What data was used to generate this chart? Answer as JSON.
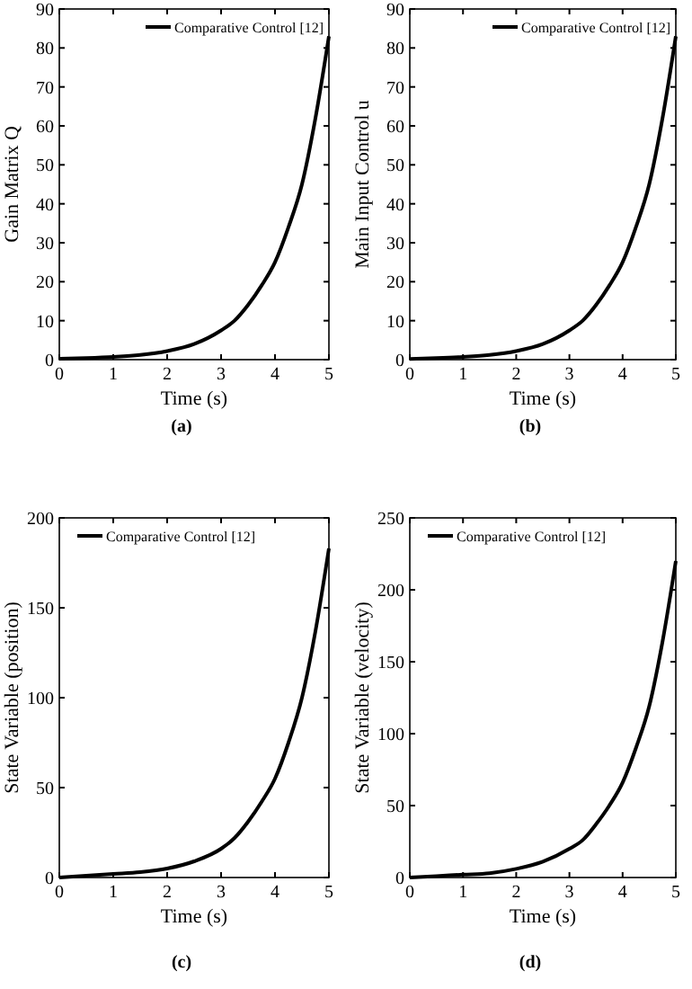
{
  "chart_data": [
    {
      "type": "line",
      "xlabel": "Time (s)",
      "ylabel": "Gain Matrix Q",
      "annotations": [
        "(a)"
      ],
      "xlim": [
        0,
        5
      ],
      "ylim": [
        0,
        90
      ],
      "xticks": [
        0,
        1,
        2,
        3,
        4,
        5
      ],
      "yticks": [
        0,
        10,
        20,
        30,
        40,
        50,
        60,
        70,
        80,
        90
      ],
      "grid": false,
      "legend": "top right",
      "x": [
        0,
        0.5,
        1,
        1.5,
        2,
        2.5,
        3,
        3.25,
        3.5,
        3.75,
        4,
        4.25,
        4.5,
        4.75,
        5
      ],
      "series": [
        {
          "name": "Comparative Control [12]",
          "color": "#000000",
          "values": [
            0.2,
            0.4,
            0.7,
            1.2,
            2.2,
            4,
            7.5,
            10,
            14,
            19,
            25,
            34,
            45,
            62,
            83
          ]
        }
      ]
    },
    {
      "type": "line",
      "xlabel": "Time (s)",
      "ylabel": "Main Input Control u",
      "annotations": [
        "(b)"
      ],
      "xlim": [
        0,
        5
      ],
      "ylim": [
        0,
        90
      ],
      "xticks": [
        0,
        1,
        2,
        3,
        4,
        5
      ],
      "yticks": [
        0,
        10,
        20,
        30,
        40,
        50,
        60,
        70,
        80,
        90
      ],
      "grid": false,
      "legend": "top right",
      "x": [
        0,
        0.5,
        1,
        1.5,
        2,
        2.5,
        3,
        3.25,
        3.5,
        3.75,
        4,
        4.25,
        4.5,
        4.75,
        5
      ],
      "series": [
        {
          "name": "Comparative Control [12]",
          "color": "#000000",
          "values": [
            0.2,
            0.4,
            0.7,
            1.2,
            2.2,
            4,
            7.5,
            10,
            14,
            19,
            25,
            34,
            45,
            62,
            83
          ]
        }
      ]
    },
    {
      "type": "line",
      "xlabel": "Time (s)",
      "ylabel": "State Variable (position)",
      "annotations": [
        "(c)"
      ],
      "xlim": [
        0,
        5
      ],
      "ylim": [
        0,
        200
      ],
      "xticks": [
        0,
        1,
        2,
        3,
        4,
        5
      ],
      "yticks": [
        0,
        50,
        100,
        150,
        200
      ],
      "grid": false,
      "legend": "top left",
      "x": [
        0,
        0.5,
        1,
        1.5,
        2,
        2.5,
        3,
        3.25,
        3.5,
        3.75,
        4,
        4.25,
        4.5,
        4.75,
        5
      ],
      "series": [
        {
          "name": "Comparative Control [12]",
          "color": "#000000",
          "values": [
            0,
            1,
            2,
            3,
            5,
            9,
            16,
            22,
            31,
            42,
            55,
            75,
            100,
            137,
            183
          ]
        }
      ]
    },
    {
      "type": "line",
      "xlabel": "Time (s)",
      "ylabel": "State Variable (velocity)",
      "annotations": [
        "(d)"
      ],
      "xlim": [
        0,
        5
      ],
      "ylim": [
        0,
        250
      ],
      "xticks": [
        0,
        1,
        2,
        3,
        4,
        5
      ],
      "yticks": [
        0,
        50,
        100,
        150,
        200,
        250
      ],
      "grid": false,
      "legend": "top left",
      "x": [
        0,
        0.5,
        1,
        1.5,
        2,
        2.5,
        3,
        3.25,
        3.5,
        3.75,
        4,
        4.25,
        4.5,
        4.75,
        5
      ],
      "series": [
        {
          "name": "Comparative Control [12]",
          "color": "#000000",
          "values": [
            0,
            1,
            2,
            3,
            6,
            11,
            20,
            26,
            37,
            50,
            66,
            90,
            119,
            164,
            220
          ]
        }
      ]
    }
  ]
}
